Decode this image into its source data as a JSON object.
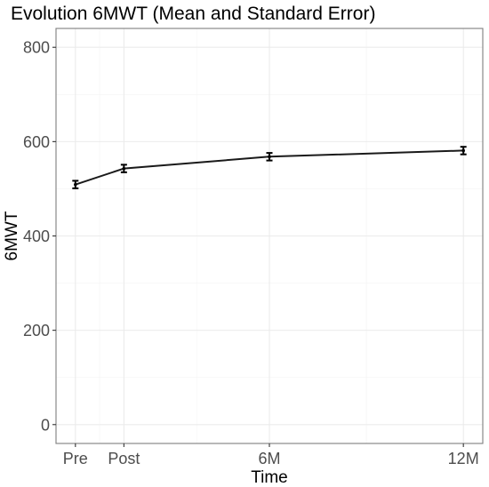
{
  "chart_data": {
    "type": "line",
    "title": "Evolution 6MWT (Mean and Standard Error)",
    "xlabel": "Time",
    "ylabel": "6MWT",
    "x_ticks": [
      {
        "label": "Pre",
        "x": 0
      },
      {
        "label": "Post",
        "x": 1.5
      },
      {
        "label": "6M",
        "x": 6
      },
      {
        "label": "12M",
        "x": 12
      }
    ],
    "xlim": [
      -0.6,
      12.6
    ],
    "ylim": [
      -40,
      840
    ],
    "y_ticks": [
      0,
      200,
      400,
      600,
      800
    ],
    "grid": true,
    "series": [
      {
        "points": [
          {
            "x": 0,
            "y": 509,
            "se": 8
          },
          {
            "x": 1.5,
            "y": 543,
            "se": 8
          },
          {
            "x": 6,
            "y": 568,
            "se": 8
          },
          {
            "x": 12,
            "y": 581,
            "se": 8
          }
        ]
      }
    ]
  }
}
